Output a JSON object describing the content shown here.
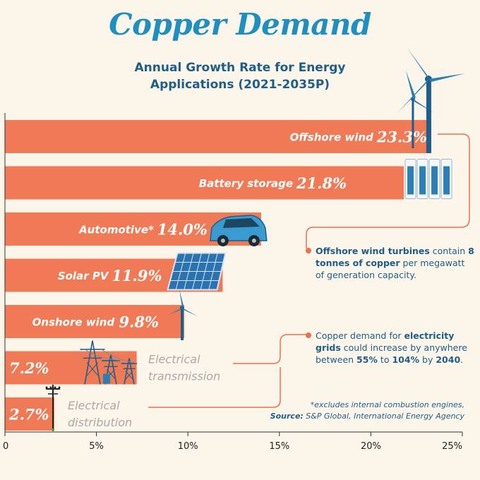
{
  "header": {
    "title": "Copper Demand",
    "subtitle_line1": "Annual Growth Rate for Energy",
    "subtitle_line2": "Applications (2021-2035P)"
  },
  "colors": {
    "bar": "#ef7a55",
    "title": "#1f8fc0",
    "text": "#1e5e8a",
    "accent": "#ee6f4b"
  },
  "chart_data": {
    "type": "bar",
    "orientation": "horizontal",
    "title": "Copper Demand",
    "subtitle": "Annual Growth Rate for Energy Applications (2021-2035P)",
    "categories": [
      "Offshore wind",
      "Battery storage",
      "Automotive*",
      "Solar PV",
      "Onshore wind",
      "Electrical transmission",
      "Electrical distribution"
    ],
    "values": [
      23.3,
      21.8,
      14.0,
      11.9,
      9.8,
      7.2,
      2.7
    ],
    "value_labels": [
      "23.3%",
      "21.8%",
      "14.0%",
      "11.9%",
      "9.8%",
      "7.2%",
      "2.7%"
    ],
    "label_inside": [
      true,
      true,
      true,
      true,
      true,
      false,
      false
    ],
    "outside_label_lines": [
      [],
      [],
      [],
      [],
      [],
      [
        "Electrical",
        "transmission"
      ],
      [
        "Electrical",
        "distribution"
      ]
    ],
    "xlim": [
      0,
      25
    ],
    "xticks": [
      0,
      5,
      10,
      15,
      20,
      25
    ],
    "xtick_labels": [
      "0",
      "5%",
      "10%",
      "15%",
      "20%",
      "25%"
    ],
    "icons": [
      "wind-turbine-icon",
      "battery-storage-icon",
      "electric-car-icon",
      "solar-panel-icon",
      "wind-turbine-icon",
      "transmission-tower-icon",
      "utility-pole-icon"
    ]
  },
  "notes": {
    "offshore_bold1": "Offshore wind turbines",
    "offshore_text1": " contain ",
    "offshore_bold2": "8 tonnes of copper",
    "offshore_text2": " per megawatt of generation capacity.",
    "grid_text1": "Copper demand for ",
    "grid_bold1": "electricity grids",
    "grid_text2": " could increase by anywhere between ",
    "grid_bold2": "55%",
    "grid_text3": " to ",
    "grid_bold3": "104%",
    "grid_text4": " by ",
    "grid_bold4": "2040",
    "grid_text5": "."
  },
  "footnote": {
    "excludes": "*excludes internal combustion engines,",
    "source_label": "Source:",
    "source_text": " S&P Global, ",
    "source_agency": "International Energy Agency"
  }
}
